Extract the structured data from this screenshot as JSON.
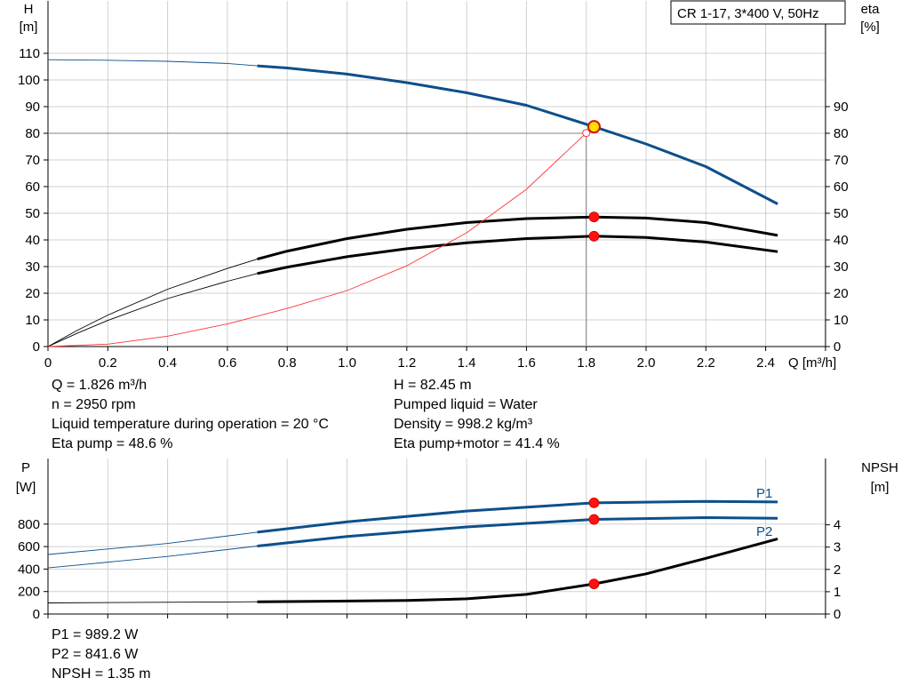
{
  "legend_box": "CR 1-17, 3*400 V, 50Hz",
  "chart_data": [
    {
      "type": "line",
      "xlabel": "Q [m³/h]",
      "ylabel_left": [
        "H",
        "[m]"
      ],
      "ylabel_right": [
        "eta",
        "[%]"
      ],
      "xlim": [
        0,
        2.6
      ],
      "ylim_left": [
        0,
        112
      ],
      "ylim_right": [
        0,
        112
      ],
      "x_ticks": [
        "0",
        "0.2",
        "0.4",
        "0.6",
        "0.8",
        "1.0",
        "1.2",
        "1.4",
        "1.6",
        "1.8",
        "2.0",
        "2.2",
        "2.4"
      ],
      "left_ticks": [
        "0",
        "10",
        "20",
        "30",
        "40",
        "50",
        "60",
        "70",
        "80",
        "90",
        "100",
        "110"
      ],
      "right_ticks": [
        "0",
        "10",
        "20",
        "30",
        "40",
        "50",
        "60",
        "70",
        "80",
        "90"
      ],
      "grid": true,
      "duty_point": {
        "q": 1.826,
        "h": 82.45
      },
      "series": [
        {
          "key": "H",
          "color": "#0d4f8b",
          "axis": "left",
          "points": [
            [
              0,
              107.6
            ],
            [
              0.2,
              107.4
            ],
            [
              0.4,
              107
            ],
            [
              0.6,
              106.2
            ],
            [
              0.7,
              105.3
            ],
            [
              0.8,
              104.5
            ],
            [
              1.0,
              102.2
            ],
            [
              1.2,
              99
            ],
            [
              1.4,
              95.2
            ],
            [
              1.6,
              90.5
            ],
            [
              1.826,
              82.45
            ],
            [
              2.0,
              76
            ],
            [
              2.2,
              67.5
            ],
            [
              2.44,
              53.5
            ]
          ],
          "thick_from": 0.7
        },
        {
          "key": "eta_pump",
          "color": "#000000",
          "axis": "right",
          "points": [
            [
              0,
              0
            ],
            [
              0.1,
              6.2
            ],
            [
              0.2,
              11.8
            ],
            [
              0.4,
              21.5
            ],
            [
              0.6,
              29.3
            ],
            [
              0.7,
              32.8
            ],
            [
              0.8,
              35.8
            ],
            [
              1.0,
              40.5
            ],
            [
              1.2,
              44
            ],
            [
              1.4,
              46.5
            ],
            [
              1.6,
              48
            ],
            [
              1.826,
              48.6
            ],
            [
              2.0,
              48.2
            ],
            [
              2.2,
              46.5
            ],
            [
              2.44,
              41.7
            ]
          ],
          "thick_from": 0.7,
          "marker": 48.6
        },
        {
          "key": "eta_total",
          "color": "#000000",
          "axis": "right",
          "points": [
            [
              0,
              0
            ],
            [
              0.1,
              5.1
            ],
            [
              0.2,
              9.8
            ],
            [
              0.4,
              18
            ],
            [
              0.6,
              24.5
            ],
            [
              0.7,
              27.4
            ],
            [
              0.8,
              29.8
            ],
            [
              1.0,
              33.7
            ],
            [
              1.2,
              36.7
            ],
            [
              1.4,
              38.9
            ],
            [
              1.6,
              40.5
            ],
            [
              1.826,
              41.4
            ],
            [
              2.0,
              40.9
            ],
            [
              2.2,
              39.2
            ],
            [
              2.44,
              35.6
            ]
          ],
          "thick_from": 0.7,
          "marker": 41.4
        },
        {
          "key": "system",
          "color": "#ff3333",
          "axis": "left",
          "points": [
            [
              0,
              0
            ],
            [
              0.2,
              0.9
            ],
            [
              0.4,
              3.9
            ],
            [
              0.6,
              8.5
            ],
            [
              0.8,
              14.3
            ],
            [
              1.0,
              21
            ],
            [
              1.2,
              30.3
            ],
            [
              1.4,
              42.7
            ],
            [
              1.6,
              59
            ],
            [
              1.8,
              80.1
            ]
          ],
          "thin": true
        }
      ]
    },
    {
      "type": "line",
      "ylabel_left": [
        "P",
        "[W]"
      ],
      "ylabel_right": [
        "NPSH",
        "[m]"
      ],
      "xlim": [
        0,
        2.6
      ],
      "left_ticks": [
        "0",
        "200",
        "400",
        "600",
        "800"
      ],
      "right_ticks": [
        "0",
        "1",
        "2",
        "3",
        "4"
      ],
      "grid": true,
      "series": [
        {
          "key": "P1",
          "name": "P1",
          "color": "#0d4f8b",
          "axis": "left",
          "points": [
            [
              0,
              530
            ],
            [
              0.4,
              628
            ],
            [
              0.7,
              728
            ],
            [
              1.0,
              820
            ],
            [
              1.4,
              916
            ],
            [
              1.826,
              989.2
            ],
            [
              2.2,
              1002
            ],
            [
              2.44,
              997
            ]
          ],
          "thick_from": 0.7,
          "marker": 989.2
        },
        {
          "key": "P2",
          "name": "P2",
          "color": "#0d4f8b",
          "axis": "left",
          "points": [
            [
              0,
              410
            ],
            [
              0.4,
              512
            ],
            [
              0.7,
              605
            ],
            [
              1.0,
              690
            ],
            [
              1.4,
              775
            ],
            [
              1.826,
              841.6
            ],
            [
              2.2,
              858
            ],
            [
              2.44,
              852
            ]
          ],
          "thick_from": 0.7,
          "marker": 841.6
        },
        {
          "key": "NPSH",
          "color": "#000000",
          "axis": "right",
          "points": [
            [
              0,
              0.5
            ],
            [
              0.7,
              0.55
            ],
            [
              1.0,
              0.58
            ],
            [
              1.2,
              0.61
            ],
            [
              1.4,
              0.68
            ],
            [
              1.6,
              0.88
            ],
            [
              1.826,
              1.35
            ],
            [
              2.0,
              1.8
            ],
            [
              2.2,
              2.5
            ],
            [
              2.44,
              3.37
            ]
          ],
          "thick_from": 0.7,
          "marker": 1.35
        }
      ]
    }
  ],
  "info_top_left": [
    "Q = 1.826 m³/h",
    "n = 2950 rpm",
    "Liquid temperature during operation = 20 °C",
    "Eta pump = 48.6 %"
  ],
  "info_top_right": [
    "H = 82.45 m",
    "Pumped liquid = Water",
    "Density = 998.2 kg/m³",
    "Eta pump+motor = 41.4 %"
  ],
  "info_bottom": [
    "P1 = 989.2 W",
    "P2 = 841.6 W",
    "NPSH = 1.35 m"
  ]
}
